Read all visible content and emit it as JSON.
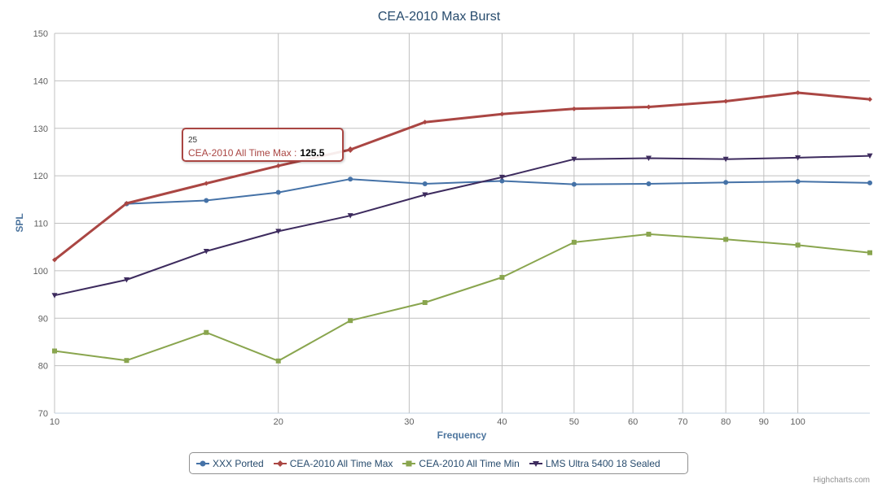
{
  "chart_data": {
    "type": "line",
    "title": "CEA-2010 Max Burst",
    "xlabel": "Frequency",
    "ylabel": "SPL",
    "x_scale": "log",
    "xlim": [
      10,
      125
    ],
    "ylim": [
      70,
      150
    ],
    "grid": true,
    "legend_position": "bottom-center",
    "x_ticks": [
      "10",
      "20",
      "30",
      "40",
      "50",
      "60",
      "70",
      "80",
      "90",
      "100"
    ],
    "y_ticks": [
      "70",
      "80",
      "90",
      "100",
      "110",
      "120",
      "130",
      "140",
      "150"
    ],
    "x": [
      10,
      12.5,
      16,
      20,
      25,
      31.5,
      40,
      50,
      63,
      80,
      100,
      125
    ],
    "series": [
      {
        "name": "XXX Ported",
        "color": "#4572a7",
        "marker": "circle",
        "values": [
          null,
          114.1,
          114.8,
          116.5,
          119.3,
          118.3,
          118.9,
          118.2,
          118.3,
          118.6,
          118.8,
          118.5
        ]
      },
      {
        "name": "CEA-2010 All Time Max",
        "color": "#aa4643",
        "marker": "diamond",
        "values": [
          102.3,
          114.2,
          118.4,
          122.1,
          125.5,
          131.3,
          133.0,
          134.1,
          134.5,
          135.7,
          137.5,
          136.1
        ]
      },
      {
        "name": "CEA-2010 All Time Min",
        "color": "#89a54e",
        "marker": "square",
        "values": [
          83.1,
          81.1,
          87.0,
          81.0,
          89.5,
          93.3,
          98.6,
          106.0,
          107.7,
          106.6,
          105.4,
          103.8
        ]
      },
      {
        "name": "LMS Ultra 5400 18 Sealed",
        "color": "#3d2b5e",
        "marker": "triangle-down",
        "values": [
          94.8,
          98.1,
          104.1,
          108.3,
          111.6,
          116.0,
          119.7,
          123.5,
          123.7,
          123.5,
          123.8,
          124.2
        ]
      }
    ],
    "tooltip": {
      "x": "25",
      "series": "CEA-2010 All Time Max :",
      "value": "125.5"
    },
    "credits": "Highcharts.com"
  }
}
